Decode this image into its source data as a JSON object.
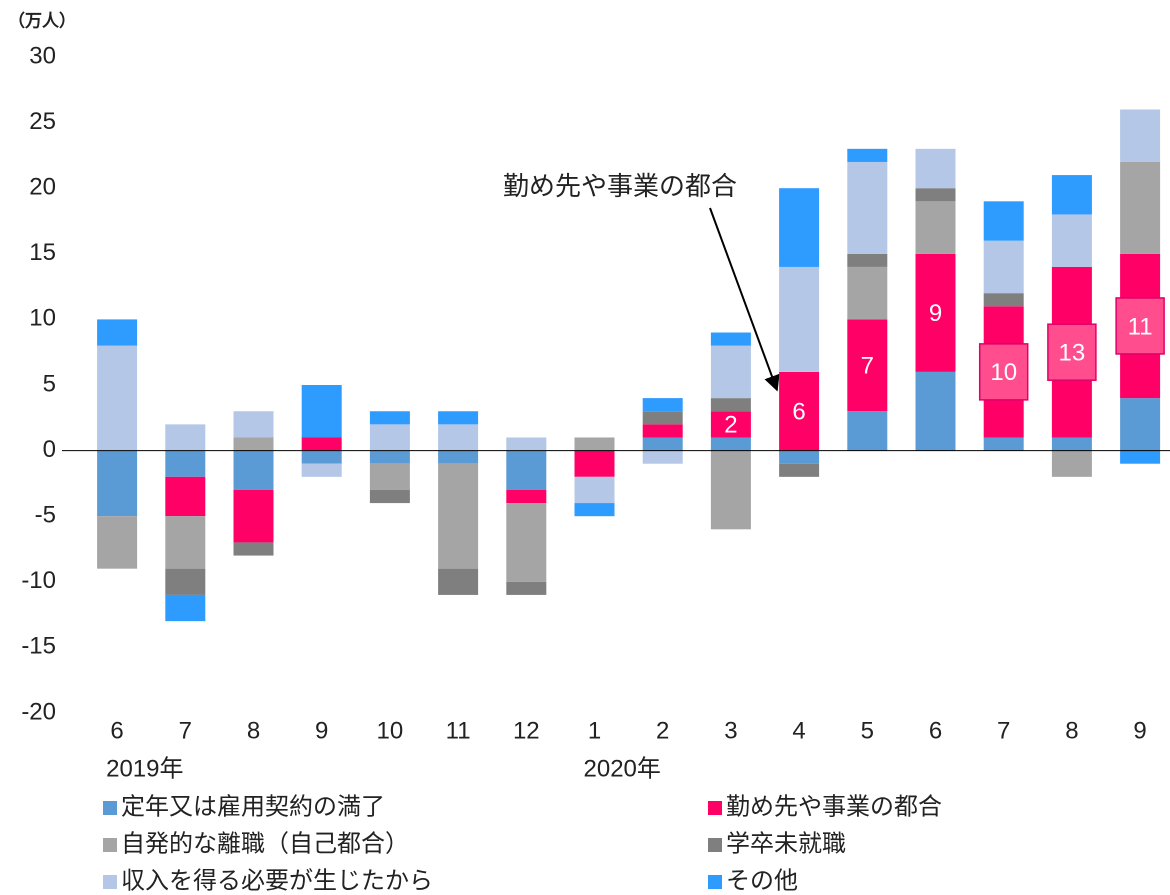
{
  "chart_data": {
    "type": "stacked_bar",
    "y_axis_label": "（万人）",
    "categories": [
      "6",
      "7",
      "8",
      "9",
      "10",
      "11",
      "12",
      "1",
      "2",
      "3",
      "4",
      "5",
      "6",
      "7",
      "8",
      "9"
    ],
    "x_group_labels": [
      "2019年",
      null,
      null,
      null,
      null,
      null,
      null,
      "2020年",
      null,
      null,
      null,
      null,
      null,
      null,
      null,
      null
    ],
    "ylim": [
      -20,
      30
    ],
    "yticks": [
      -20,
      -15,
      -10,
      -5,
      0,
      5,
      10,
      15,
      20,
      25,
      30
    ],
    "annotation": "勤め先や事業の都合",
    "series": [
      {
        "name": "定年又は雇用契約の満了",
        "color": "#5b9bd5",
        "values": [
          -5,
          -2,
          -3,
          -1,
          -1,
          -1,
          -3,
          0,
          1,
          1,
          -1,
          3,
          6,
          1,
          1,
          4
        ]
      },
      {
        "name": "勤め先や事業の都合",
        "color": "#ff0066",
        "values": [
          0,
          -3,
          -4,
          1,
          0,
          0,
          -1,
          -2,
          1,
          2,
          6,
          7,
          9,
          10,
          13,
          11
        ],
        "value_labels": [
          null,
          null,
          null,
          null,
          null,
          null,
          null,
          null,
          null,
          "2",
          "6",
          "7",
          "9",
          "10",
          "13",
          "11"
        ]
      },
      {
        "name": "自発的な離職（自己都合）",
        "color": "#a5a5a5",
        "values": [
          -4,
          -4,
          1,
          0,
          -2,
          -8,
          -6,
          1,
          0,
          -6,
          0,
          4,
          4,
          0,
          -2,
          7
        ]
      },
      {
        "name": "学卒未就職",
        "color": "#7f7f7f",
        "values": [
          0,
          -2,
          -1,
          0,
          -1,
          -2,
          -1,
          0,
          1,
          1,
          -1,
          1,
          1,
          1,
          0,
          0
        ]
      },
      {
        "name": "収入を得る必要が生じたから",
        "color": "#b4c7e7",
        "values": [
          8,
          2,
          2,
          -1,
          2,
          2,
          1,
          -2,
          -1,
          4,
          8,
          7,
          3,
          4,
          4,
          4
        ]
      },
      {
        "name": "その他",
        "color": "#2e9bff",
        "values": [
          2,
          -2,
          0,
          4,
          1,
          1,
          0,
          -1,
          1,
          1,
          6,
          1,
          0,
          3,
          3,
          -1
        ]
      }
    ]
  }
}
